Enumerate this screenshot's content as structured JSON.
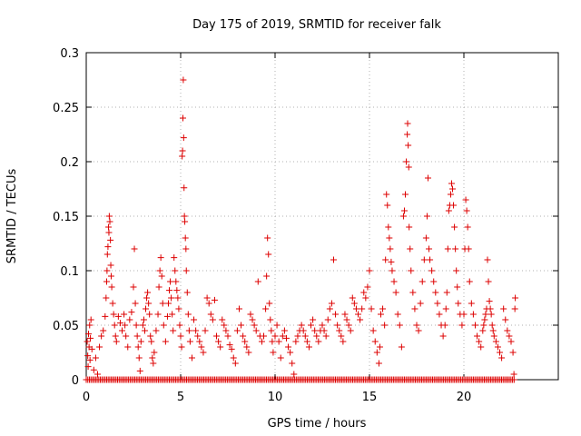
{
  "chart_data": {
    "type": "scatter",
    "title": "Day 175 of 2019, SRMTID for receiver falk",
    "xlabel": "GPS time / hours",
    "ylabel": "SRMTID / TECUs",
    "xlim": [
      0,
      25
    ],
    "ylim": [
      0,
      0.3
    ],
    "xticks": [
      0,
      5,
      10,
      15,
      20
    ],
    "xtick_labels": [
      "0",
      "5",
      "10",
      "15",
      "20"
    ],
    "yticks": [
      0,
      0.05,
      0.1,
      0.15,
      0.2,
      0.25,
      0.3
    ],
    "ytick_labels": [
      "0",
      "0.05",
      "0.1",
      "0.15",
      "0.2",
      "0.25",
      "0.3"
    ],
    "grid": true,
    "marker": "+",
    "color": "#dd0000",
    "baseline": {
      "from": 0.0,
      "to": 22.7,
      "step": 0.083,
      "value": 0
    },
    "series": [
      {
        "name": "SRMTID",
        "points": [
          [
            0.05,
            0.035
          ],
          [
            0.08,
            0.022
          ],
          [
            0.1,
            0.012
          ],
          [
            0.12,
            0.042
          ],
          [
            0.15,
            0.03
          ],
          [
            0.18,
            0.05
          ],
          [
            0.2,
            0.018
          ],
          [
            0.22,
            0.038
          ],
          [
            0.25,
            0.055
          ],
          [
            0.3,
            0.028
          ],
          [
            0.4,
            0.009
          ],
          [
            0.5,
            0.02
          ],
          [
            0.6,
            0.005
          ],
          [
            0.7,
            0.03
          ],
          [
            0.8,
            0.04
          ],
          [
            0.9,
            0.045
          ],
          [
            1.0,
            0.058
          ],
          [
            1.05,
            0.075
          ],
          [
            1.08,
            0.09
          ],
          [
            1.1,
            0.1
          ],
          [
            1.12,
            0.115
          ],
          [
            1.15,
            0.122
          ],
          [
            1.18,
            0.14
          ],
          [
            1.2,
            0.135
          ],
          [
            1.22,
            0.15
          ],
          [
            1.25,
            0.145
          ],
          [
            1.28,
            0.128
          ],
          [
            1.3,
            0.105
          ],
          [
            1.32,
            0.095
          ],
          [
            1.35,
            0.085
          ],
          [
            1.4,
            0.07
          ],
          [
            1.45,
            0.06
          ],
          [
            1.5,
            0.05
          ],
          [
            1.55,
            0.04
          ],
          [
            1.6,
            0.035
          ],
          [
            1.7,
            0.058
          ],
          [
            1.8,
            0.052
          ],
          [
            1.9,
            0.045
          ],
          [
            2.0,
            0.06
          ],
          [
            2.05,
            0.05
          ],
          [
            2.1,
            0.04
          ],
          [
            2.2,
            0.03
          ],
          [
            2.3,
            0.055
          ],
          [
            2.4,
            0.062
          ],
          [
            2.5,
            0.085
          ],
          [
            2.55,
            0.12
          ],
          [
            2.6,
            0.07
          ],
          [
            2.65,
            0.05
          ],
          [
            2.7,
            0.04
          ],
          [
            2.75,
            0.03
          ],
          [
            2.8,
            0.02
          ],
          [
            2.85,
            0.008
          ],
          [
            2.9,
            0.035
          ],
          [
            3.0,
            0.05
          ],
          [
            3.05,
            0.055
          ],
          [
            3.1,
            0.045
          ],
          [
            3.15,
            0.065
          ],
          [
            3.2,
            0.075
          ],
          [
            3.25,
            0.08
          ],
          [
            3.3,
            0.07
          ],
          [
            3.35,
            0.06
          ],
          [
            3.4,
            0.04
          ],
          [
            3.45,
            0.035
          ],
          [
            3.5,
            0.02
          ],
          [
            3.55,
            0.015
          ],
          [
            3.6,
            0.025
          ],
          [
            3.7,
            0.045
          ],
          [
            3.8,
            0.06
          ],
          [
            3.85,
            0.085
          ],
          [
            3.9,
            0.1
          ],
          [
            3.95,
            0.112
          ],
          [
            4.0,
            0.095
          ],
          [
            4.05,
            0.07
          ],
          [
            4.1,
            0.05
          ],
          [
            4.2,
            0.035
          ],
          [
            4.3,
            0.058
          ],
          [
            4.35,
            0.07
          ],
          [
            4.4,
            0.082
          ],
          [
            4.45,
            0.09
          ],
          [
            4.5,
            0.075
          ],
          [
            4.55,
            0.06
          ],
          [
            4.6,
            0.045
          ],
          [
            4.65,
            0.112
          ],
          [
            4.7,
            0.1
          ],
          [
            4.75,
            0.09
          ],
          [
            4.8,
            0.082
          ],
          [
            4.85,
            0.075
          ],
          [
            4.9,
            0.065
          ],
          [
            4.95,
            0.05
          ],
          [
            5.0,
            0.04
          ],
          [
            5.05,
            0.03
          ],
          [
            5.08,
            0.205
          ],
          [
            5.1,
            0.21
          ],
          [
            5.12,
            0.24
          ],
          [
            5.14,
            0.275
          ],
          [
            5.16,
            0.222
          ],
          [
            5.18,
            0.176
          ],
          [
            5.2,
            0.15
          ],
          [
            5.22,
            0.145
          ],
          [
            5.25,
            0.13
          ],
          [
            5.28,
            0.12
          ],
          [
            5.3,
            0.1
          ],
          [
            5.35,
            0.08
          ],
          [
            5.4,
            0.06
          ],
          [
            5.45,
            0.045
          ],
          [
            5.5,
            0.035
          ],
          [
            5.6,
            0.02
          ],
          [
            5.7,
            0.055
          ],
          [
            5.8,
            0.045
          ],
          [
            5.9,
            0.04
          ],
          [
            6.0,
            0.035
          ],
          [
            6.1,
            0.03
          ],
          [
            6.2,
            0.025
          ],
          [
            6.3,
            0.045
          ],
          [
            6.4,
            0.075
          ],
          [
            6.5,
            0.07
          ],
          [
            6.6,
            0.06
          ],
          [
            6.7,
            0.055
          ],
          [
            6.8,
            0.073
          ],
          [
            6.9,
            0.04
          ],
          [
            7.0,
            0.035
          ],
          [
            7.1,
            0.03
          ],
          [
            7.2,
            0.055
          ],
          [
            7.3,
            0.05
          ],
          [
            7.4,
            0.045
          ],
          [
            7.5,
            0.04
          ],
          [
            7.6,
            0.032
          ],
          [
            7.7,
            0.028
          ],
          [
            7.8,
            0.02
          ],
          [
            7.9,
            0.015
          ],
          [
            8.0,
            0.045
          ],
          [
            8.1,
            0.065
          ],
          [
            8.2,
            0.05
          ],
          [
            8.3,
            0.04
          ],
          [
            8.4,
            0.035
          ],
          [
            8.5,
            0.03
          ],
          [
            8.6,
            0.025
          ],
          [
            8.7,
            0.06
          ],
          [
            8.8,
            0.055
          ],
          [
            8.9,
            0.05
          ],
          [
            9.0,
            0.045
          ],
          [
            9.1,
            0.09
          ],
          [
            9.2,
            0.04
          ],
          [
            9.3,
            0.035
          ],
          [
            9.4,
            0.04
          ],
          [
            9.5,
            0.065
          ],
          [
            9.55,
            0.095
          ],
          [
            9.6,
            0.13
          ],
          [
            9.65,
            0.115
          ],
          [
            9.7,
            0.07
          ],
          [
            9.75,
            0.055
          ],
          [
            9.8,
            0.045
          ],
          [
            9.85,
            0.035
          ],
          [
            9.9,
            0.025
          ],
          [
            10.0,
            0.04
          ],
          [
            10.1,
            0.05
          ],
          [
            10.2,
            0.035
          ],
          [
            10.3,
            0.02
          ],
          [
            10.4,
            0.04
          ],
          [
            10.5,
            0.045
          ],
          [
            10.6,
            0.038
          ],
          [
            10.7,
            0.03
          ],
          [
            10.8,
            0.025
          ],
          [
            10.9,
            0.015
          ],
          [
            11.0,
            0.005
          ],
          [
            11.1,
            0.035
          ],
          [
            11.2,
            0.04
          ],
          [
            11.3,
            0.045
          ],
          [
            11.4,
            0.05
          ],
          [
            11.5,
            0.045
          ],
          [
            11.6,
            0.04
          ],
          [
            11.7,
            0.035
          ],
          [
            11.8,
            0.03
          ],
          [
            11.9,
            0.05
          ],
          [
            12.0,
            0.055
          ],
          [
            12.1,
            0.045
          ],
          [
            12.2,
            0.04
          ],
          [
            12.3,
            0.035
          ],
          [
            12.4,
            0.045
          ],
          [
            12.5,
            0.05
          ],
          [
            12.6,
            0.045
          ],
          [
            12.7,
            0.04
          ],
          [
            12.8,
            0.055
          ],
          [
            12.9,
            0.065
          ],
          [
            13.0,
            0.07
          ],
          [
            13.1,
            0.11
          ],
          [
            13.2,
            0.06
          ],
          [
            13.3,
            0.05
          ],
          [
            13.4,
            0.045
          ],
          [
            13.5,
            0.04
          ],
          [
            13.6,
            0.035
          ],
          [
            13.7,
            0.06
          ],
          [
            13.8,
            0.055
          ],
          [
            13.9,
            0.05
          ],
          [
            14.0,
            0.045
          ],
          [
            14.1,
            0.075
          ],
          [
            14.2,
            0.07
          ],
          [
            14.3,
            0.065
          ],
          [
            14.4,
            0.06
          ],
          [
            14.5,
            0.055
          ],
          [
            14.6,
            0.065
          ],
          [
            14.7,
            0.08
          ],
          [
            14.8,
            0.075
          ],
          [
            14.9,
            0.085
          ],
          [
            15.0,
            0.1
          ],
          [
            15.1,
            0.065
          ],
          [
            15.2,
            0.045
          ],
          [
            15.3,
            0.035
          ],
          [
            15.4,
            0.025
          ],
          [
            15.5,
            0.015
          ],
          [
            15.55,
            0.03
          ],
          [
            15.6,
            0.06
          ],
          [
            15.7,
            0.065
          ],
          [
            15.8,
            0.05
          ],
          [
            15.85,
            0.11
          ],
          [
            15.9,
            0.17
          ],
          [
            15.95,
            0.16
          ],
          [
            16.0,
            0.14
          ],
          [
            16.05,
            0.13
          ],
          [
            16.1,
            0.12
          ],
          [
            16.15,
            0.108
          ],
          [
            16.2,
            0.1
          ],
          [
            16.3,
            0.09
          ],
          [
            16.4,
            0.08
          ],
          [
            16.5,
            0.06
          ],
          [
            16.6,
            0.05
          ],
          [
            16.7,
            0.03
          ],
          [
            16.8,
            0.15
          ],
          [
            16.85,
            0.155
          ],
          [
            16.9,
            0.17
          ],
          [
            16.95,
            0.2
          ],
          [
            17.0,
            0.225
          ],
          [
            17.02,
            0.235
          ],
          [
            17.05,
            0.215
          ],
          [
            17.08,
            0.195
          ],
          [
            17.1,
            0.14
          ],
          [
            17.15,
            0.12
          ],
          [
            17.2,
            0.1
          ],
          [
            17.3,
            0.08
          ],
          [
            17.4,
            0.065
          ],
          [
            17.5,
            0.05
          ],
          [
            17.6,
            0.045
          ],
          [
            17.7,
            0.07
          ],
          [
            17.8,
            0.09
          ],
          [
            17.9,
            0.11
          ],
          [
            18.0,
            0.13
          ],
          [
            18.05,
            0.15
          ],
          [
            18.1,
            0.185
          ],
          [
            18.15,
            0.12
          ],
          [
            18.2,
            0.11
          ],
          [
            18.3,
            0.1
          ],
          [
            18.4,
            0.09
          ],
          [
            18.5,
            0.08
          ],
          [
            18.6,
            0.07
          ],
          [
            18.7,
            0.06
          ],
          [
            18.8,
            0.05
          ],
          [
            18.9,
            0.04
          ],
          [
            19.0,
            0.05
          ],
          [
            19.05,
            0.065
          ],
          [
            19.1,
            0.08
          ],
          [
            19.15,
            0.12
          ],
          [
            19.2,
            0.155
          ],
          [
            19.25,
            0.16
          ],
          [
            19.3,
            0.17
          ],
          [
            19.35,
            0.18
          ],
          [
            19.4,
            0.175
          ],
          [
            19.45,
            0.16
          ],
          [
            19.5,
            0.14
          ],
          [
            19.55,
            0.12
          ],
          [
            19.6,
            0.1
          ],
          [
            19.65,
            0.085
          ],
          [
            19.7,
            0.07
          ],
          [
            19.8,
            0.06
          ],
          [
            19.9,
            0.05
          ],
          [
            20.0,
            0.06
          ],
          [
            20.05,
            0.12
          ],
          [
            20.1,
            0.165
          ],
          [
            20.15,
            0.155
          ],
          [
            20.2,
            0.14
          ],
          [
            20.25,
            0.12
          ],
          [
            20.3,
            0.09
          ],
          [
            20.4,
            0.07
          ],
          [
            20.5,
            0.06
          ],
          [
            20.6,
            0.05
          ],
          [
            20.7,
            0.04
          ],
          [
            20.8,
            0.035
          ],
          [
            20.9,
            0.03
          ],
          [
            21.0,
            0.045
          ],
          [
            21.05,
            0.05
          ],
          [
            21.1,
            0.055
          ],
          [
            21.15,
            0.06
          ],
          [
            21.2,
            0.065
          ],
          [
            21.25,
            0.11
          ],
          [
            21.3,
            0.09
          ],
          [
            21.35,
            0.072
          ],
          [
            21.4,
            0.065
          ],
          [
            21.45,
            0.06
          ],
          [
            21.5,
            0.05
          ],
          [
            21.55,
            0.045
          ],
          [
            21.6,
            0.04
          ],
          [
            21.7,
            0.035
          ],
          [
            21.8,
            0.03
          ],
          [
            21.9,
            0.025
          ],
          [
            22.0,
            0.02
          ],
          [
            22.1,
            0.065
          ],
          [
            22.2,
            0.055
          ],
          [
            22.3,
            0.045
          ],
          [
            22.4,
            0.04
          ],
          [
            22.5,
            0.035
          ],
          [
            22.6,
            0.025
          ],
          [
            22.65,
            0.005
          ],
          [
            22.7,
            0.065
          ],
          [
            22.72,
            0.075
          ]
        ]
      }
    ]
  }
}
